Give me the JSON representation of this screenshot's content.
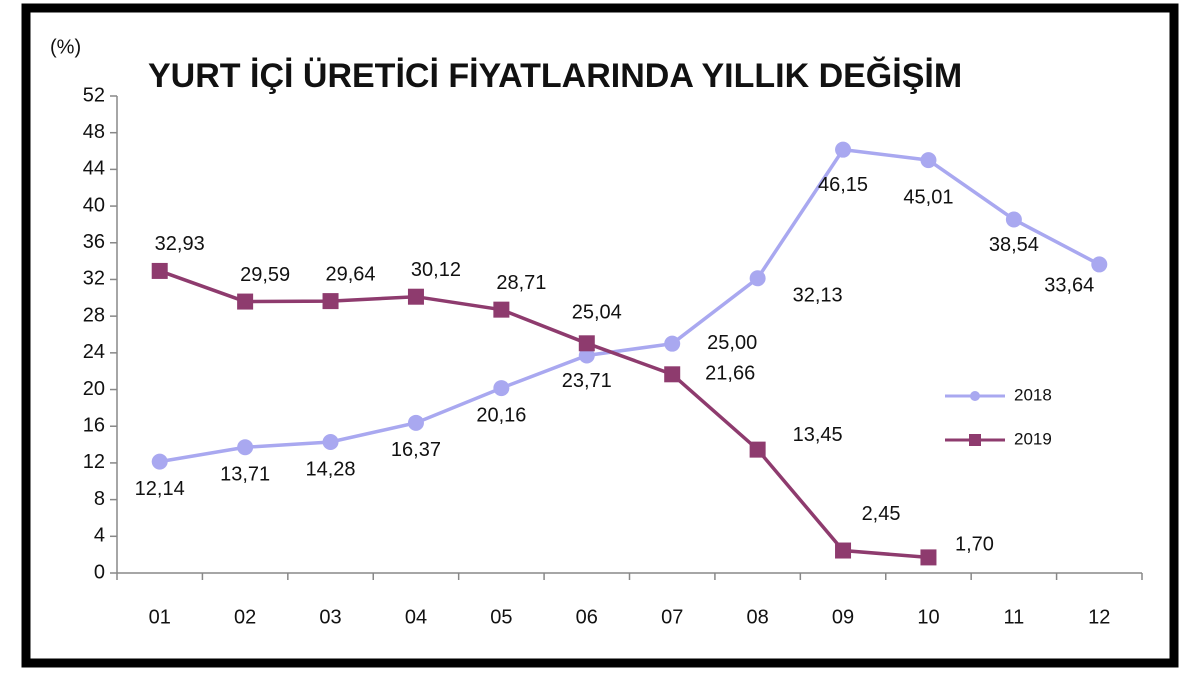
{
  "chart_data": {
    "type": "line",
    "title": "YURT İÇİ ÜRETİCİ FİYATLARINDA YILLIK DEĞİŞİM",
    "y_label": "(%)",
    "categories": [
      "01",
      "02",
      "03",
      "04",
      "05",
      "06",
      "07",
      "08",
      "09",
      "10",
      "11",
      "12"
    ],
    "series": [
      {
        "name": "2018",
        "color": "#a9a8f0",
        "marker": "circle",
        "values": [
          12.14,
          13.71,
          14.28,
          16.37,
          20.16,
          23.71,
          25.0,
          32.13,
          46.15,
          45.01,
          38.54,
          33.64
        ],
        "value_labels": [
          "12,14",
          "13,71",
          "14,28",
          "16,37",
          "20,16",
          "23,71",
          "25,00",
          "32,13",
          "46,15",
          "45,01",
          "38,54",
          "33,64"
        ]
      },
      {
        "name": "2019",
        "color": "#8e3b6e",
        "marker": "square",
        "values": [
          32.93,
          29.59,
          29.64,
          30.12,
          28.71,
          25.04,
          21.66,
          13.45,
          2.45,
          1.7,
          null,
          null
        ],
        "value_labels": [
          "32,93",
          "29,59",
          "29,64",
          "30,12",
          "28,71",
          "25,04",
          "21,66",
          "13,45",
          "2,45",
          "1,70",
          null,
          null
        ]
      }
    ],
    "ylim": [
      0,
      52
    ],
    "yticks": [
      0,
      4,
      8,
      12,
      16,
      20,
      24,
      28,
      32,
      36,
      40,
      44,
      48,
      52
    ],
    "grid": false,
    "legend": "right"
  }
}
